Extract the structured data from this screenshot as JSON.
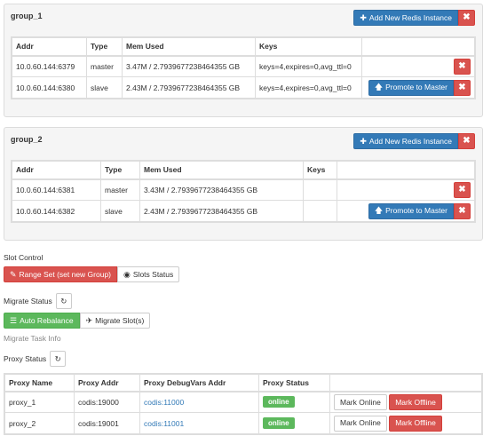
{
  "groups": [
    {
      "title": "group_1",
      "add_label": "Add New Redis Instance",
      "columns": [
        "Addr",
        "Type",
        "Mem Used",
        "Keys"
      ],
      "rows": [
        {
          "addr": "10.0.60.144:6379",
          "type": "master",
          "mem": "3.47M / 2.7939677238464355 GB",
          "keys": "keys=4,expires=0,avg_ttl=0",
          "promote": ""
        },
        {
          "addr": "10.0.60.144:6380",
          "type": "slave",
          "mem": "2.43M / 2.7939677238464355 GB",
          "keys": "keys=4,expires=0,avg_ttl=0",
          "promote": "Promote to Master"
        }
      ]
    },
    {
      "title": "group_2",
      "add_label": "Add New Redis Instance",
      "columns": [
        "Addr",
        "Type",
        "Mem Used",
        "Keys"
      ],
      "rows": [
        {
          "addr": "10.0.60.144:6381",
          "type": "master",
          "mem": "3.43M / 2.7939677238464355 GB",
          "keys": "",
          "promote": ""
        },
        {
          "addr": "10.0.60.144:6382",
          "type": "slave",
          "mem": "2.43M / 2.7939677238464355 GB",
          "keys": "",
          "promote": "Promote to Master"
        }
      ]
    }
  ],
  "slot_control": {
    "label": "Slot Control",
    "range_set_label": "Range Set (set new Group)",
    "slots_status_label": "Slots Status"
  },
  "migrate": {
    "label": "Migrate Status",
    "auto_rebalance_label": "Auto Rebalance",
    "migrate_slots_label": "Migrate Slot(s)",
    "task_info_label": "Migrate Task Info"
  },
  "proxy": {
    "label": "Proxy Status",
    "columns": [
      "Proxy Name",
      "Proxy Addr",
      "Proxy DebugVars Addr",
      "Proxy Status"
    ],
    "rows": [
      {
        "name": "proxy_1",
        "addr": "codis:19000",
        "debug": "codis:11000",
        "status": "online",
        "mark_online": "Mark Online",
        "mark_offline": "Mark Offline"
      },
      {
        "name": "proxy_2",
        "addr": "codis:19001",
        "debug": "codis:11001",
        "status": "online",
        "mark_online": "Mark Online",
        "mark_offline": "Mark Offline"
      }
    ]
  },
  "colors": {
    "primary": "#337ab7",
    "danger": "#d9534f",
    "success": "#5cb85c"
  },
  "icons": {
    "add": "plus-icon",
    "remove": "close-icon",
    "promote": "arrow-up-icon",
    "refresh": "refresh-icon",
    "edit": "pencil-icon",
    "eye": "eye-icon",
    "list": "list-icon",
    "plane": "plane-icon"
  }
}
